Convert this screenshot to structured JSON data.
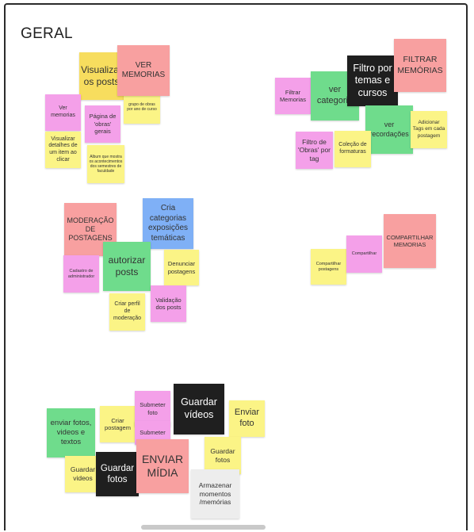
{
  "board": {
    "title": "GERAL"
  },
  "notes": {
    "visualizar_posts": "Visualizar os posts",
    "ver_memorias_top": "VER MEMORIAS",
    "ver_memorias_small": "Ver memorias",
    "pagina_obras": "Página de 'obras' gerais",
    "grupo_obras": "grupo de obras por ano de curso",
    "visualizar_detalhes": "Visualizar detalhes de um item ao clicar",
    "album_obras": "Album que mostra os acontecimentos dos semestres de faculdade",
    "filtrar_memorias_small": "Filtrar Memorias",
    "ver_categoria": "ver categoria",
    "filtro_temas": "Filtro por temas e cursos",
    "filtrar_memorias_big": "FILTRAR MEMÓRIAS",
    "ver_recordacoes": "ver recordações",
    "adicionar_tags": "Adicionar Tags em cada postagem",
    "filtro_obras_tag": "Filtro de 'Obras' por tag",
    "colecao_formaturas": "Coleção de formaturas",
    "moderacao": "MODERAÇÃO DE POSTAGENS",
    "cria_categorias": "Cria categorias exposições temáticas",
    "cadastro_admin": "Cadastro de administrador",
    "autorizar_posts": "autorizar posts",
    "denunciar_postagens": "Denunciar postagens",
    "criar_perfil": "Criar perfil de moderação",
    "validacao_posts": "Validação dos posts",
    "compartilhar_memorias": "COMPARTILHAR MEMORIAS",
    "compartilhar": "Compartilhar",
    "compartilhar_postagens": "Compartilhar postagens",
    "enviar_fotos_videos": "enviar fotos, videos e textos",
    "criar_postagem": "Criar postagem",
    "submeter_foto": "Submeter foto",
    "submeter": "Submeter",
    "guardar_videos_big": "Guardar vídeos",
    "enviar_foto": "Enviar foto",
    "guardar_videos_small": "Guardar videos",
    "guardar_fotos_black": "Guardar fotos",
    "enviar_midia": "ENVIAR MÍDIA",
    "guardar_fotos_yellow": "Guardar fotos",
    "armazenar_momentos": "Armazenar momentos /memórias"
  }
}
